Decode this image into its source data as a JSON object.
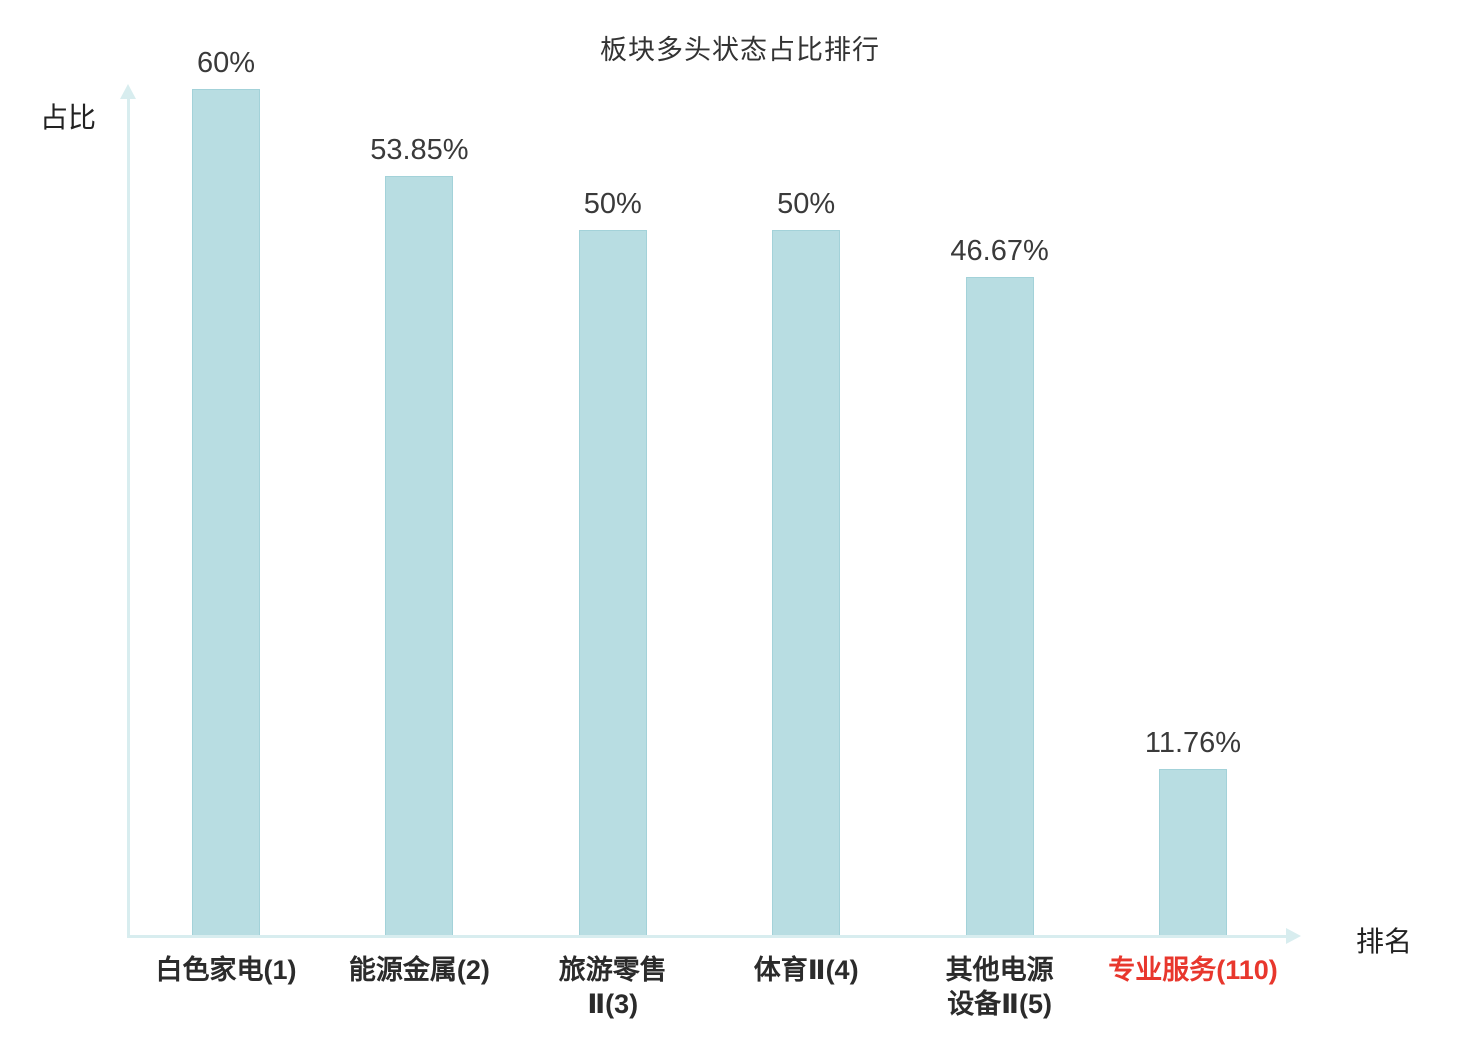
{
  "title": "板块多头状态占比排行",
  "axes": {
    "y_label": "占比",
    "x_label": "排名"
  },
  "colors": {
    "bar_fill": "#b8dde2",
    "bar_border": "#a3d2d9",
    "axis": "#d8edef",
    "text": "#3a3a3a",
    "highlight": "#e8372d"
  },
  "chart_data": {
    "type": "bar",
    "title": "板块多头状态占比排行",
    "xlabel": "排名",
    "ylabel": "占比",
    "ylim": [
      0,
      63
    ],
    "grid": false,
    "legend": "none",
    "categories": [
      "白色家电(1)",
      "能源金属(2)",
      "旅游零售\nⅡ(3)",
      "体育Ⅱ(4)",
      "其他电源\n设备Ⅱ(5)",
      "专业服务(110)"
    ],
    "values": [
      60,
      53.85,
      50,
      50,
      46.67,
      11.76
    ],
    "value_labels": [
      "60%",
      "53.85%",
      "50%",
      "50%",
      "46.67%",
      "11.76%"
    ],
    "highlight_index": 5
  }
}
